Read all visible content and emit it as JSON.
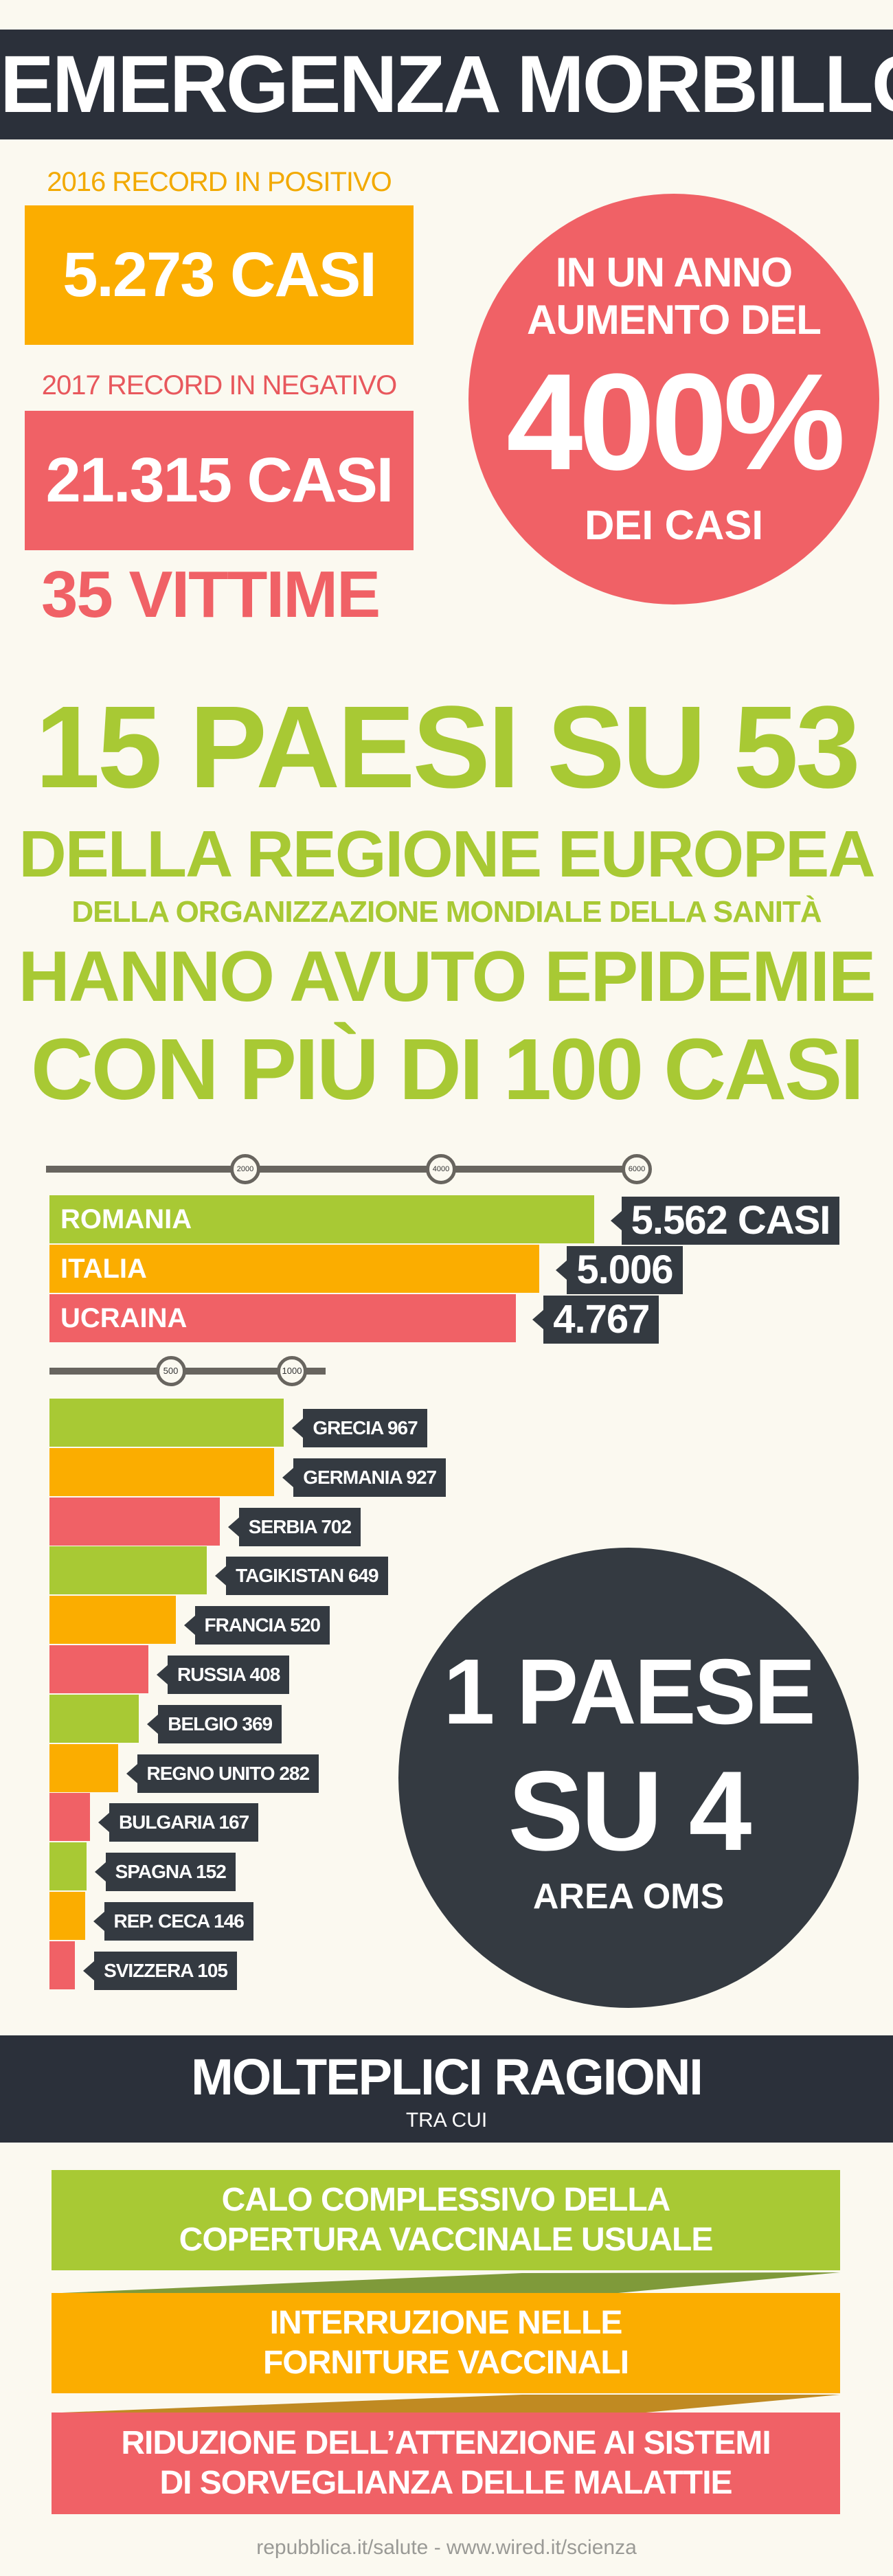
{
  "header": {
    "title": "EMERGENZA MORBILLO"
  },
  "records": {
    "r2016": {
      "label": "2016 RECORD IN POSITIVO",
      "value": "5.273 CASI"
    },
    "r2017": {
      "label": "2017 RECORD IN NEGATIVO",
      "value": "21.315 CASI"
    },
    "victims": "35 VITTIME"
  },
  "increase": {
    "line1": "IN UN ANNO",
    "line2": "AUMENTO DEL",
    "percent": "400%",
    "line3": "DEI CASI"
  },
  "countries_stat": {
    "headline": "15 PAESI SU 53",
    "line1": "DELLA REGIONE EUROPEA",
    "line2": "DELLA ORGANIZZAZIONE MONDIALE DELLA SANITÀ",
    "line3": "HANNO AVUTO EPIDEMIE",
    "line4": "CON PIÙ DI 100 CASI"
  },
  "colors": {
    "green": "#a8c934",
    "orange": "#fbad00",
    "red": "#f06166",
    "dark": "#2b303a"
  },
  "chart_data": [
    {
      "type": "bar",
      "orientation": "horizontal",
      "axis_ticks": [
        "2000",
        "4000",
        "6000"
      ],
      "tick_values": [
        2000,
        4000,
        6000
      ],
      "xlim": [
        0,
        6200
      ],
      "bars": [
        {
          "name": "ROMANIA",
          "value": 5562,
          "label": "5.562 CASI",
          "color": "green"
        },
        {
          "name": "ITALIA",
          "value": 5006,
          "label": "5.006",
          "color": "orange"
        },
        {
          "name": "UCRAINA",
          "value": 4767,
          "label": "4.767",
          "color": "red"
        }
      ]
    },
    {
      "type": "bar",
      "orientation": "horizontal",
      "axis_ticks": [
        "500",
        "1000"
      ],
      "tick_values": [
        500,
        1000
      ],
      "xlim": [
        0,
        1150
      ],
      "bars": [
        {
          "name": "GRECIA",
          "value": 967,
          "label": "GRECIA 967",
          "color": "green"
        },
        {
          "name": "GERMANIA",
          "value": 927,
          "label": "GERMANIA 927",
          "color": "orange"
        },
        {
          "name": "SERBIA",
          "value": 702,
          "label": "SERBIA 702",
          "color": "red"
        },
        {
          "name": "TAGIKISTAN",
          "value": 649,
          "label": "TAGIKISTAN 649",
          "color": "green"
        },
        {
          "name": "FRANCIA",
          "value": 520,
          "label": "FRANCIA 520",
          "color": "orange"
        },
        {
          "name": "RUSSIA",
          "value": 408,
          "label": "RUSSIA 408",
          "color": "red"
        },
        {
          "name": "BELGIO",
          "value": 369,
          "label": "BELGIO 369",
          "color": "green"
        },
        {
          "name": "REGNO UNITO",
          "value": 282,
          "label": "REGNO UNITO 282",
          "color": "orange"
        },
        {
          "name": "BULGARIA",
          "value": 167,
          "label": "BULGARIA 167",
          "color": "red"
        },
        {
          "name": "SPAGNA",
          "value": 152,
          "label": "SPAGNA 152",
          "color": "green"
        },
        {
          "name": "REP. CECA",
          "value": 146,
          "label": "REP. CECA 146",
          "color": "orange"
        },
        {
          "name": "SVIZZERA",
          "value": 105,
          "label": "SVIZZERA 105",
          "color": "red"
        }
      ]
    }
  ],
  "ratio": {
    "line1": "1 PAESE",
    "line2": "SU 4",
    "line3": "AREA OMS"
  },
  "reasons": {
    "title": "MOLTEPLICI RAGIONI",
    "subtitle": "TRA CUI",
    "items": [
      {
        "line1": "CALO COMPLESSIVO DELLA",
        "line2": "COPERTURA VACCINALE USUALE"
      },
      {
        "line1": "INTERRUZIONE NELLE",
        "line2": "FORNITURE VACCINALI"
      },
      {
        "line1": "RIDUZIONE DELL’ATTENZIONE AI SISTEMI",
        "line2": "DI SORVEGLIANZA DELLE MALATTIE"
      }
    ]
  },
  "footer": {
    "sources": "repubblica.it/salute - www.wired.it/scienza"
  }
}
